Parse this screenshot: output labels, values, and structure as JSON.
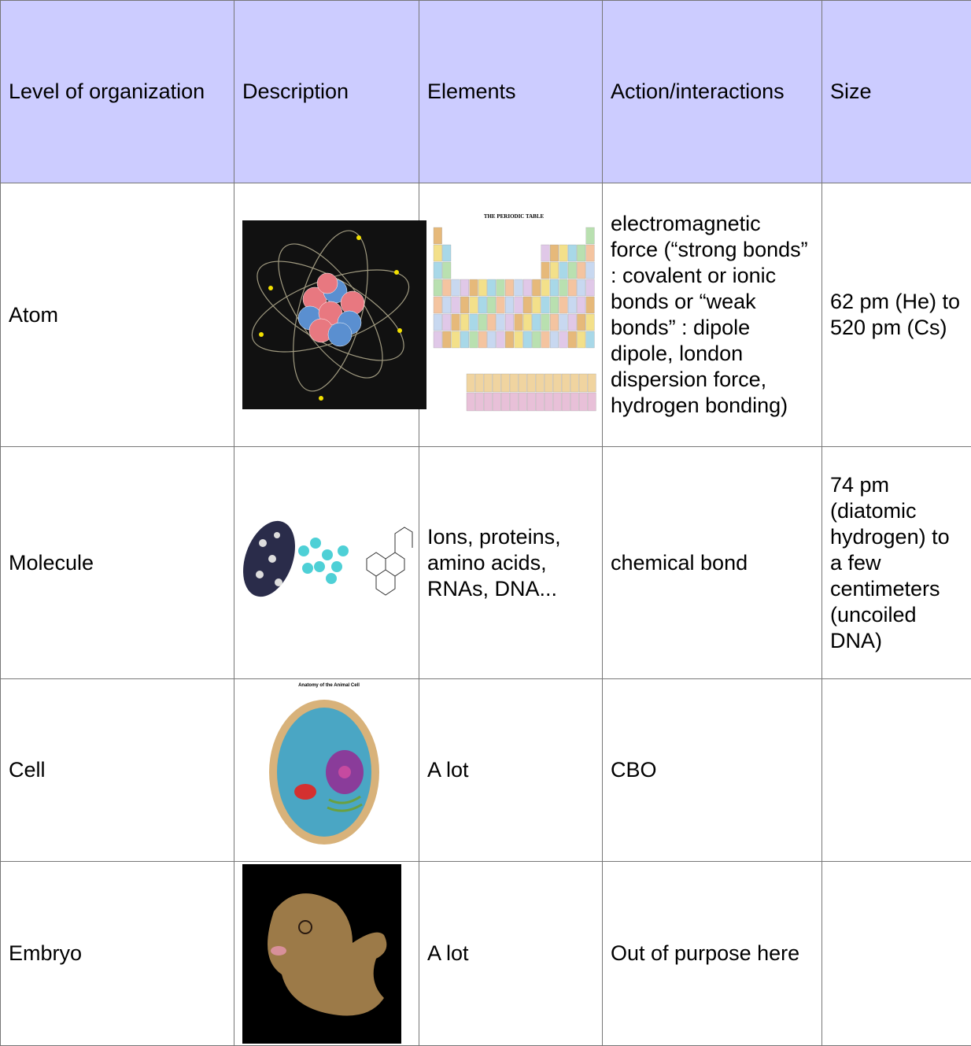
{
  "table": {
    "header": [
      "Level of organization",
      "Description",
      "Elements",
      "Action/interactions",
      "Size"
    ],
    "rows": [
      {
        "level": "Atom",
        "periodic_table_title": "THE PERIODIC TABLE",
        "actions": "electromagnetic force (“strong bonds” : covalent or ionic bonds or “weak bonds” : dipole dipole, london dispersion force, hydrogen bonding)",
        "size": "62 pm (He) to 520 pm (Cs)"
      },
      {
        "level": "Molecule",
        "elements": "Ions, proteins, amino acids, RNAs, DNA...",
        "actions": "chemical bond",
        "size": "74 pm (diatomic hydrogen) to a few centimeters (uncoiled DNA)"
      },
      {
        "level": "Cell",
        "cell_image_title": "Anatomy of the Animal Cell",
        "elements": "A lot",
        "actions": "CBO"
      },
      {
        "level": "Embryo",
        "elements": "A lot",
        "actions": "Out of purpose here"
      }
    ]
  }
}
